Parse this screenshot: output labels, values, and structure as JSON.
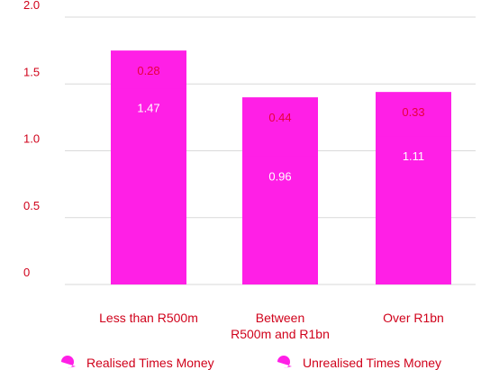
{
  "chart_data": {
    "type": "bar",
    "stacked": true,
    "categories": [
      [
        "Less than R500m"
      ],
      [
        "Between",
        "R500m and R1bn"
      ],
      [
        "Over R1bn"
      ]
    ],
    "series": [
      {
        "name": "Realised Times Money",
        "values": [
          1.47,
          0.96,
          1.11
        ]
      },
      {
        "name": "Unrealised Times Money",
        "values": [
          0.28,
          0.44,
          0.33
        ]
      }
    ],
    "ylim": [
      0,
      2.0
    ],
    "yticks": [
      "0",
      "0.5",
      "1.0",
      "1.5",
      "2.0"
    ],
    "grid": true,
    "legend": "bottom",
    "colors": {
      "bar": "#ff1fe6",
      "realised_label": "#ffffff",
      "unrealised_label": "#e8003d",
      "axis_text": "#d0021b",
      "grid": "#d9d9d9"
    }
  }
}
